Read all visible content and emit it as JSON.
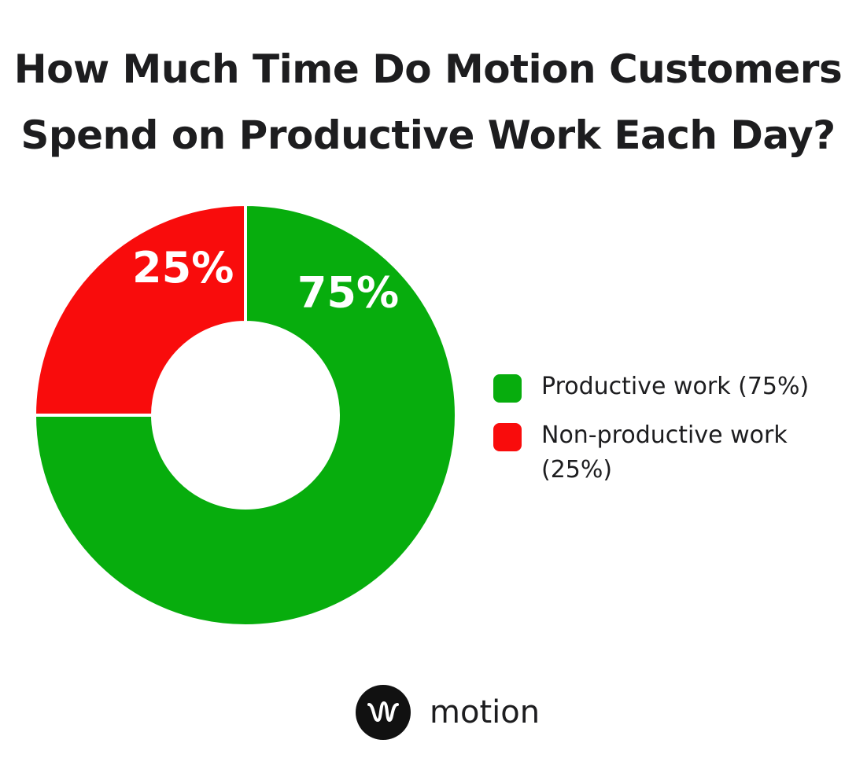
{
  "title_lines": [
    "How Much Time Do Motion Customers",
    "Spend on Productive Work Each Day?"
  ],
  "chart_data": {
    "type": "pie",
    "variant": "donut",
    "slices": [
      {
        "label": "Productive work (75%)",
        "value": 75,
        "display": "75%",
        "color": "#07ad0d"
      },
      {
        "label": "Non-productive work (25%)",
        "value": 25,
        "display": "25%",
        "color": "#f90c0c"
      }
    ],
    "legend_position": "right"
  },
  "brand": {
    "name": "motion",
    "logo_icon": "motion-logo-icon"
  }
}
